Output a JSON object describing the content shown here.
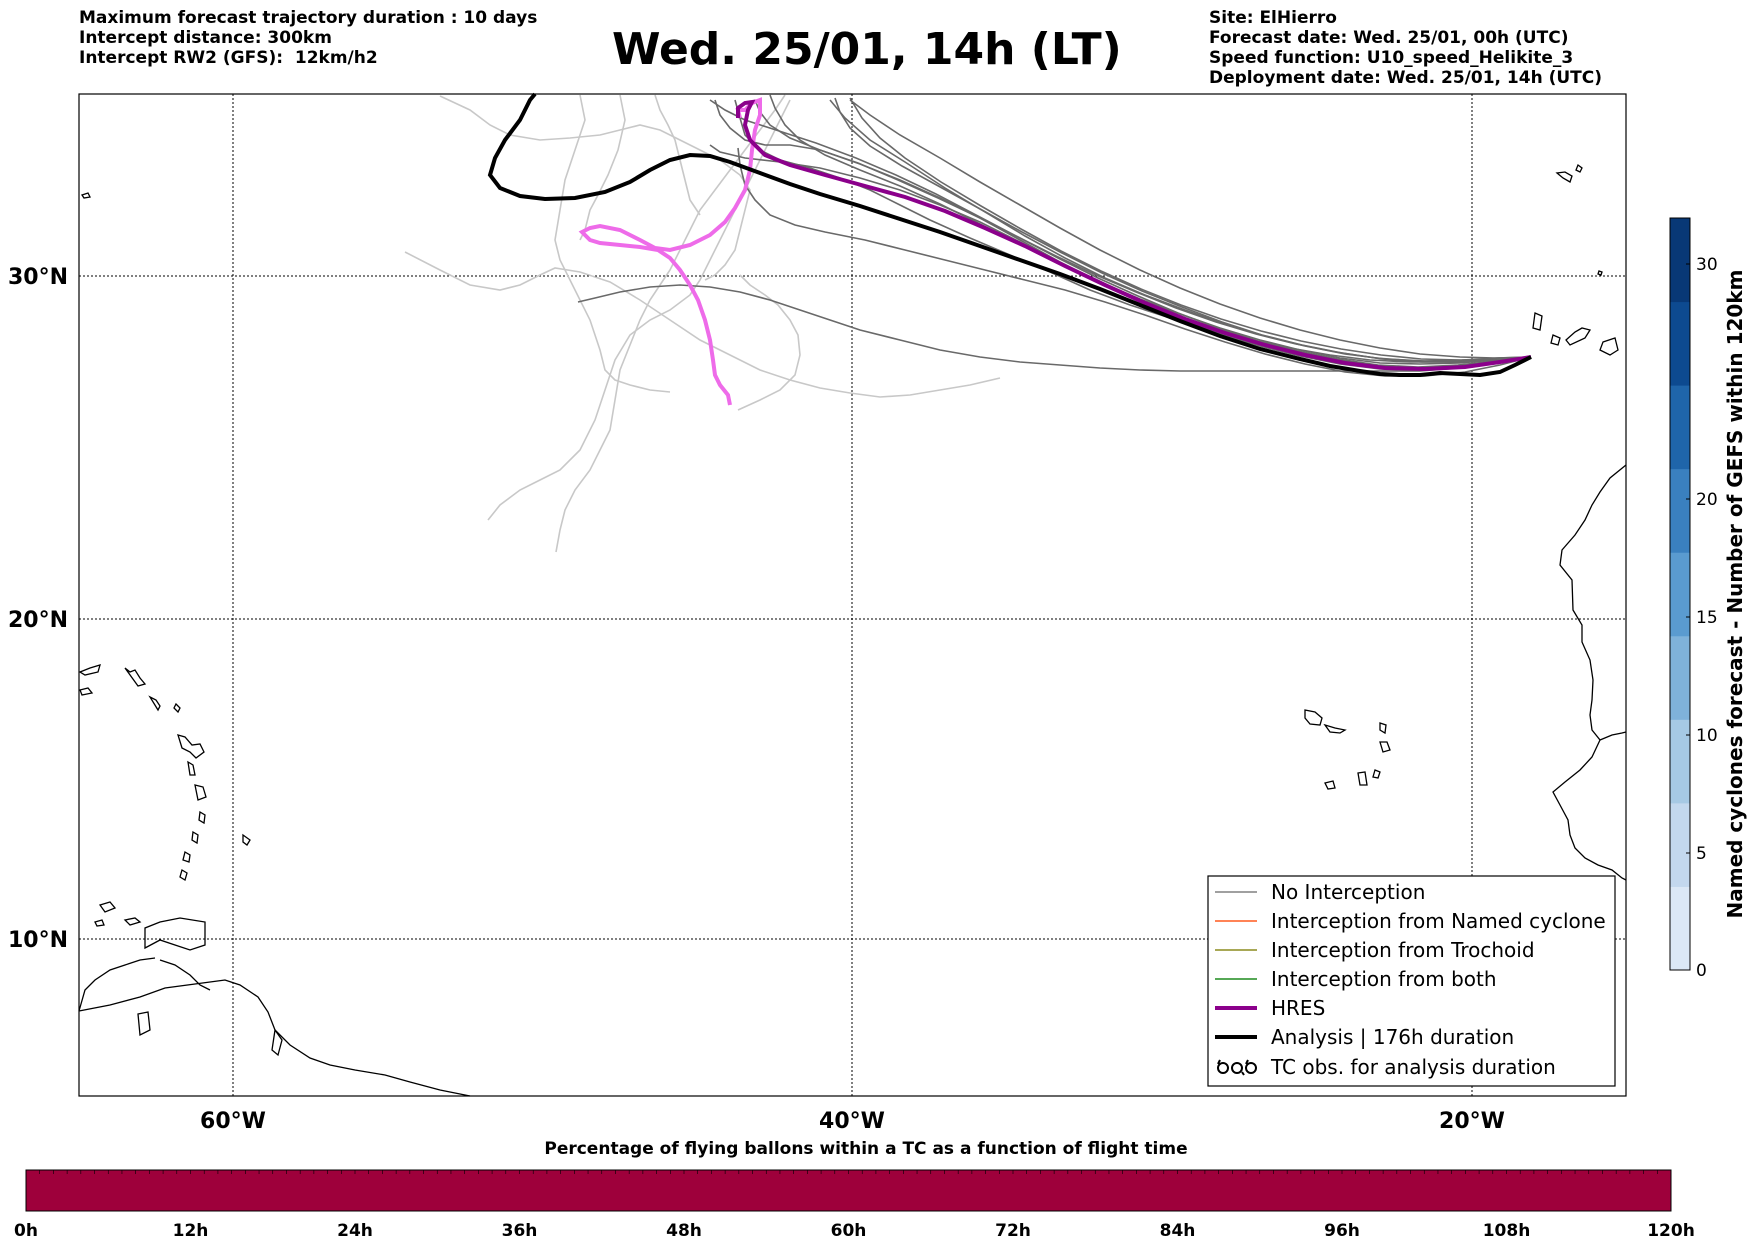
{
  "header_left": [
    "Maximum forecast trajectory duration : 10 days",
    "Intercept distance: 300km",
    "Intercept RW2 (GFS):  12km/h2"
  ],
  "title": "Wed. 25/01, 14h (LT)",
  "header_right": [
    "Site: ElHierro",
    "Forecast date: Wed. 25/01, 00h (UTC)",
    "Speed function: U10_speed_Helikite_3",
    "Deployment date: Wed. 25/01, 14h (UTC)"
  ],
  "map": {
    "lat_labels": [
      "30°N",
      "20°N",
      "10°N"
    ],
    "lon_labels": [
      "60°W",
      "40°W",
      "20°W"
    ],
    "gridline_style": "dotted"
  },
  "legend": {
    "items": [
      {
        "label": "No Interception",
        "color": "#808080"
      },
      {
        "label": "Interception from Named cyclone",
        "color": "#ff5a1e"
      },
      {
        "label": "Interception from Trochoid",
        "color": "#8c8c1e"
      },
      {
        "label": "Interception from both",
        "color": "#1e8c1e"
      },
      {
        "label": "HRES",
        "color": "#8b008b"
      },
      {
        "label": "Analysis | 176h duration",
        "color": "#000000"
      },
      {
        "label": "TC obs. for analysis duration",
        "color": "#000000",
        "icon": "tc-symbol-icon"
      }
    ],
    "placement": "lower-right"
  },
  "colorbar": {
    "title": "Named cyclones forecast - Number of GEFS within 120km",
    "ticks": [
      "0",
      "5",
      "10",
      "15",
      "20",
      "30"
    ],
    "colors": [
      "#dbe8f6",
      "#c3d8ee",
      "#a6c9e4",
      "#7fb2da",
      "#5a9bd0",
      "#3a80bf",
      "#1f65aa",
      "#0d4a90",
      "#083876"
    ]
  },
  "bottom_bar": {
    "title": "Percentage of flying ballons within a TC as a function of flight time",
    "ticks": [
      "0h",
      "12h",
      "24h",
      "36h",
      "48h",
      "60h",
      "72h",
      "84h",
      "96h",
      "108h",
      "120h"
    ],
    "fill_color": "#9e003b"
  },
  "trajectories": {
    "gray_color": "#696969",
    "light_gray_color": "#c8c8c8",
    "hres_color": "#8b008b",
    "hres_pink_color": "#ee6be9",
    "analysis_color": "#000000"
  }
}
